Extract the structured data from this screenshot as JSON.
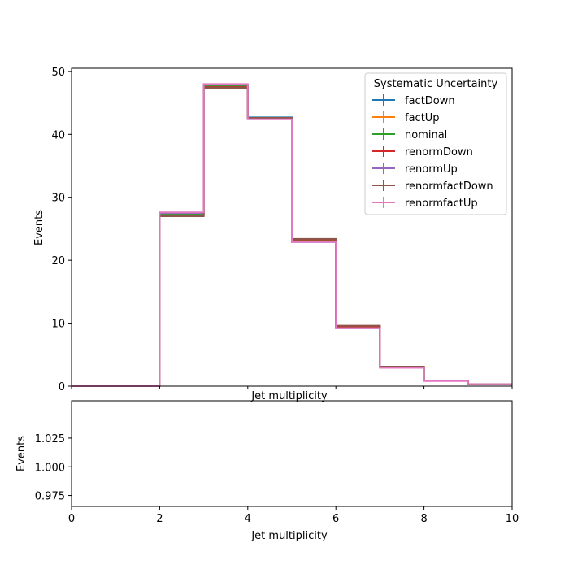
{
  "chart_data": [
    {
      "type": "line",
      "drawstyle": "steps",
      "xlabel": "Jet multiplicity",
      "ylabel": "Events",
      "xlim": [
        0,
        10
      ],
      "ylim": [
        0,
        50.5
      ],
      "xticks": [
        0,
        2,
        4,
        6,
        8,
        10
      ],
      "xtick_labels_visible": false,
      "yticks": [
        0,
        10,
        20,
        30,
        40,
        50
      ],
      "ytick_labels": [
        "0",
        "10",
        "20",
        "30",
        "40",
        "50"
      ],
      "bin_edges": [
        0,
        1,
        2,
        3,
        4,
        5,
        6,
        7,
        8,
        9,
        10
      ],
      "grid": false,
      "legend": {
        "title": "Systematic Uncertainty",
        "placement": "top-right"
      },
      "series": [
        {
          "name": "factDown",
          "color": "#1f77b4",
          "values": [
            0,
            0,
            27.2,
            47.6,
            42.7,
            23.1,
            9.4,
            3.0,
            0.9,
            0.3
          ]
        },
        {
          "name": "factUp",
          "color": "#ff7f0e",
          "values": [
            0,
            0,
            27.4,
            47.9,
            42.5,
            23.0,
            9.3,
            3.0,
            0.9,
            0.3
          ]
        },
        {
          "name": "nominal",
          "color": "#2ca02c",
          "values": [
            0,
            0,
            27.3,
            47.7,
            42.6,
            23.1,
            9.4,
            3.0,
            0.9,
            0.3
          ]
        },
        {
          "name": "renormDown",
          "color": "#d62728",
          "values": [
            0,
            0,
            27.1,
            47.5,
            42.6,
            23.3,
            9.5,
            3.0,
            0.9,
            0.3
          ]
        },
        {
          "name": "renormUp",
          "color": "#9467bd",
          "values": [
            0,
            0,
            27.5,
            47.9,
            42.5,
            22.9,
            9.2,
            2.9,
            0.9,
            0.3
          ]
        },
        {
          "name": "renormfactDown",
          "color": "#8c564b",
          "values": [
            0,
            0,
            27.0,
            47.4,
            42.6,
            23.4,
            9.6,
            3.1,
            0.9,
            0.3
          ]
        },
        {
          "name": "renormfactUp",
          "color": "#e377c2",
          "values": [
            0,
            0,
            27.6,
            48.0,
            42.4,
            22.9,
            9.2,
            2.9,
            0.8,
            0.3
          ]
        }
      ]
    },
    {
      "type": "line",
      "xlabel": "Jet multiplicity",
      "ylabel": "Events",
      "xlim": [
        0,
        10
      ],
      "ylim": [
        0.9655,
        1.0575
      ],
      "xticks": [
        0,
        2,
        4,
        6,
        8,
        10
      ],
      "xtick_labels": [
        "0",
        "2",
        "4",
        "6",
        "8",
        "10"
      ],
      "yticks": [
        0.975,
        1.0,
        1.025
      ],
      "ytick_labels": [
        "0.975",
        "1.000",
        "1.025"
      ],
      "grid": false,
      "series": []
    }
  ]
}
